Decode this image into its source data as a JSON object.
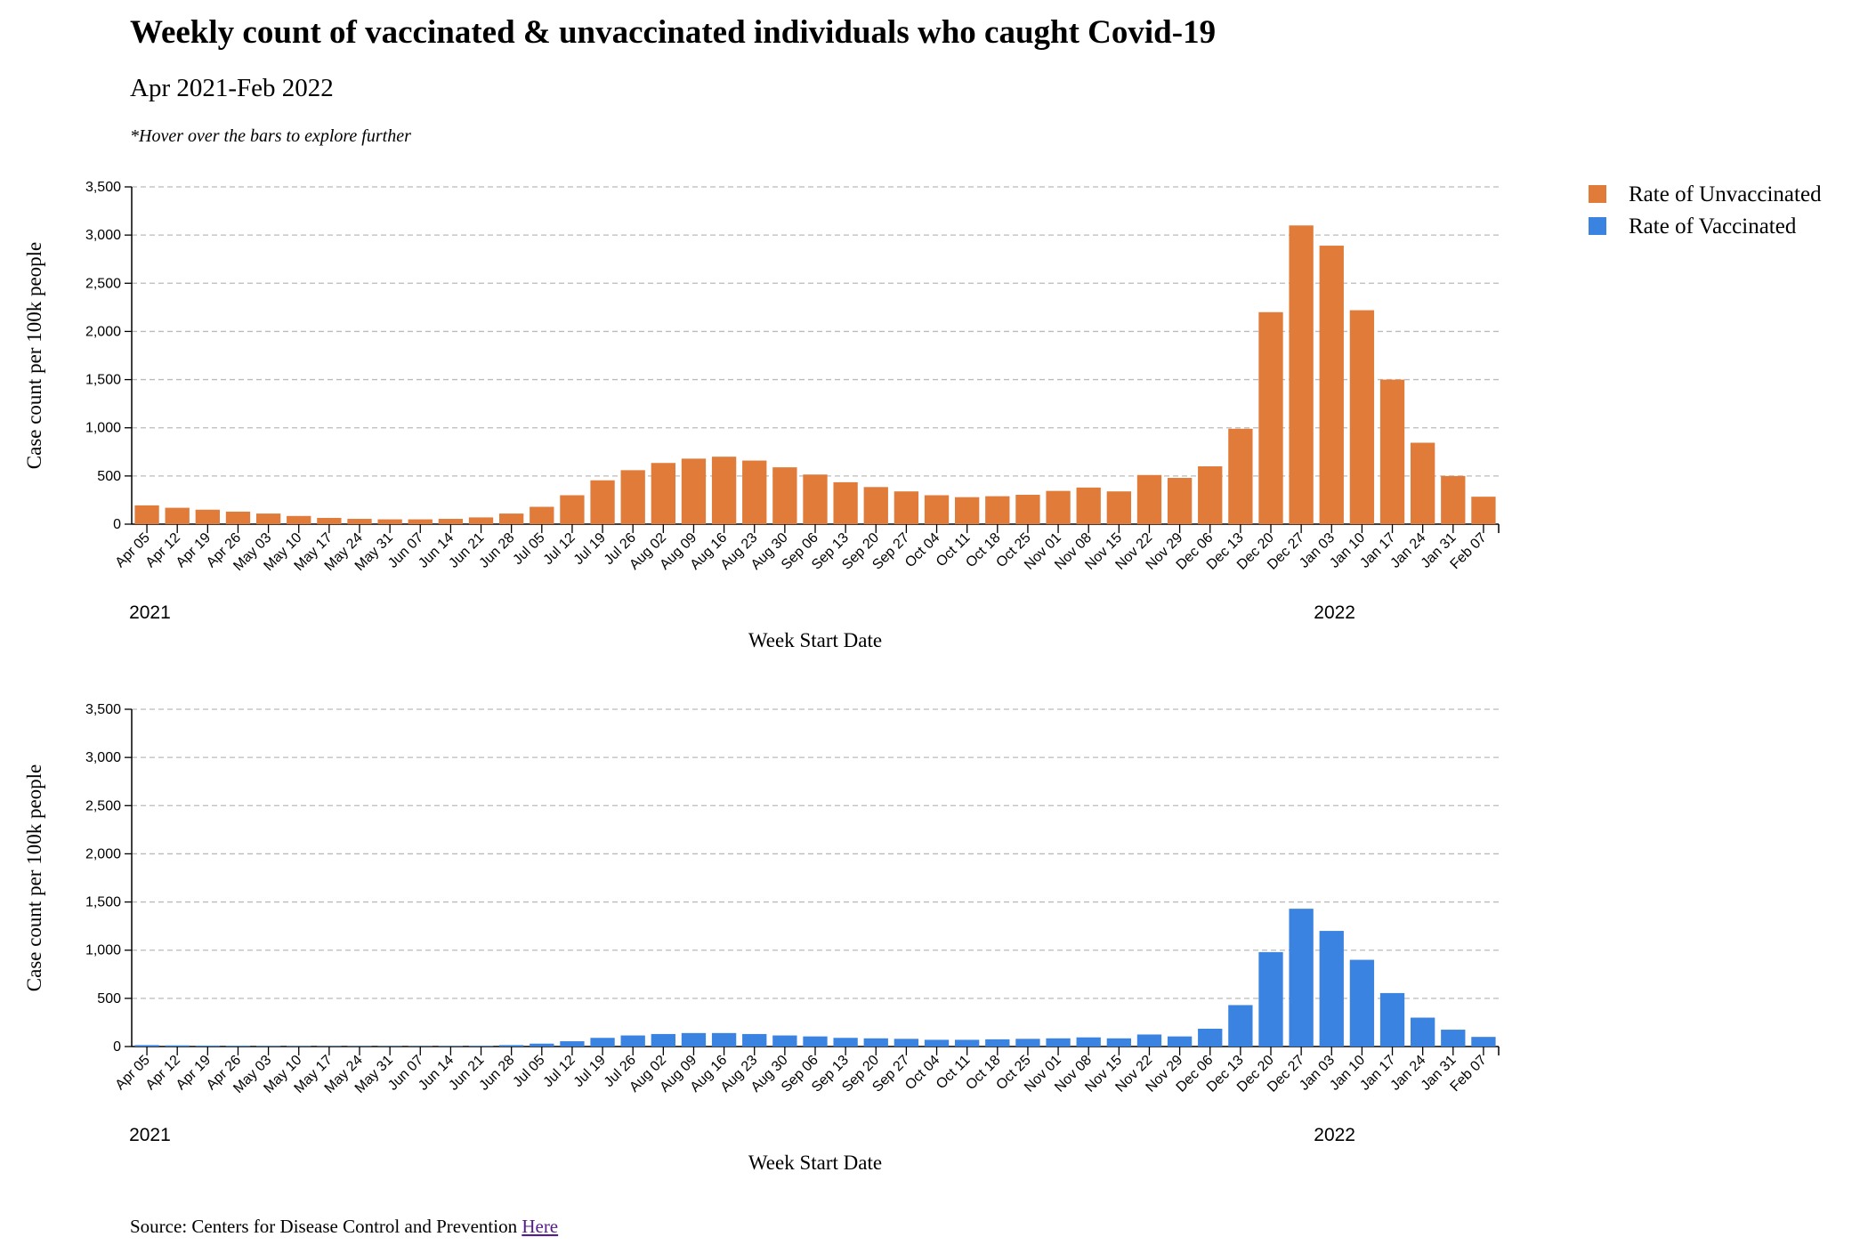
{
  "header": {
    "title": "Weekly count of vaccinated & unvaccinated individuals who caught Covid-19",
    "subtitle": "Apr 2021-Feb 2022",
    "note": "*Hover over the bars to explore further"
  },
  "legend_position": "top-right",
  "source": {
    "text": "Source: Centers for Disease Control and Prevention",
    "link": "Here"
  },
  "chart_data": [
    {
      "type": "bar",
      "ylabel": "Case count per 100k people",
      "xlabel": "Week Start Date",
      "categories": [
        "Apr 05",
        "Apr 12",
        "Apr 19",
        "Apr 26",
        "May 03",
        "May 10",
        "May 17",
        "May 24",
        "May 31",
        "Jun 07",
        "Jun 14",
        "Jun 21",
        "Jun 28",
        "Jul 05",
        "Jul 12",
        "Jul 19",
        "Jul 26",
        "Aug 02",
        "Aug 09",
        "Aug 16",
        "Aug 23",
        "Aug 30",
        "Sep 06",
        "Sep 13",
        "Sep 20",
        "Sep 27",
        "Oct 04",
        "Oct 11",
        "Oct 18",
        "Oct 25",
        "Nov 01",
        "Nov 08",
        "Nov 15",
        "Nov 22",
        "Nov 29",
        "Dec 06",
        "Dec 13",
        "Dec 20",
        "Dec 27",
        "Jan 03",
        "Jan 10",
        "Jan 17",
        "Jan 24",
        "Jan 31",
        "Feb 07"
      ],
      "year_markers": [
        {
          "text": "2021",
          "week": "Apr 05"
        },
        {
          "text": "2022",
          "week": "Jan 03"
        }
      ],
      "series": [
        {
          "name": "Rate of Unvaccinated",
          "color": "#e07b39",
          "values": [
            195,
            170,
            150,
            130,
            110,
            85,
            65,
            55,
            50,
            50,
            55,
            70,
            110,
            180,
            300,
            455,
            560,
            635,
            680,
            700,
            660,
            590,
            515,
            435,
            385,
            340,
            300,
            280,
            290,
            305,
            345,
            380,
            340,
            510,
            480,
            600,
            990,
            2200,
            3100,
            2890,
            2220,
            1500,
            845,
            500,
            285
          ]
        }
      ],
      "ylim": [
        0,
        3500
      ],
      "yticks": [
        0,
        500,
        {
          "value": 1000,
          "label": "1,000"
        },
        {
          "value": 1500,
          "label": "1,500"
        },
        {
          "value": 2000,
          "label": "2,000"
        },
        {
          "value": 2500,
          "label": "2,500"
        },
        {
          "value": 3000,
          "label": "3,000"
        },
        {
          "value": 3500,
          "label": "3,500"
        }
      ],
      "grid": true
    },
    {
      "type": "bar",
      "ylabel": "Case count per 100k people",
      "xlabel": "Week Start Date",
      "categories": [
        "Apr 05",
        "Apr 12",
        "Apr 19",
        "Apr 26",
        "May 03",
        "May 10",
        "May 17",
        "May 24",
        "May 31",
        "Jun 07",
        "Jun 14",
        "Jun 21",
        "Jun 28",
        "Jul 05",
        "Jul 12",
        "Jul 19",
        "Jul 26",
        "Aug 02",
        "Aug 09",
        "Aug 16",
        "Aug 23",
        "Aug 30",
        "Sep 06",
        "Sep 13",
        "Sep 20",
        "Sep 27",
        "Oct 04",
        "Oct 11",
        "Oct 18",
        "Oct 25",
        "Nov 01",
        "Nov 08",
        "Nov 15",
        "Nov 22",
        "Nov 29",
        "Dec 06",
        "Dec 13",
        "Dec 20",
        "Dec 27",
        "Jan 03",
        "Jan 10",
        "Jan 17",
        "Jan 24",
        "Jan 31",
        "Feb 07"
      ],
      "year_markers": [
        {
          "text": "2021",
          "week": "Apr 05"
        },
        {
          "text": "2022",
          "week": "Jan 03"
        }
      ],
      "series": [
        {
          "name": "Rate of Vaccinated",
          "color": "#3b83e0",
          "values": [
            15,
            12,
            10,
            8,
            6,
            5,
            4,
            4,
            4,
            4,
            5,
            7,
            15,
            30,
            55,
            90,
            115,
            130,
            140,
            140,
            130,
            115,
            105,
            90,
            85,
            80,
            70,
            70,
            75,
            80,
            85,
            95,
            85,
            125,
            105,
            185,
            430,
            980,
            1430,
            1200,
            900,
            555,
            300,
            175,
            100
          ]
        }
      ],
      "ylim": [
        0,
        3500
      ],
      "yticks": [
        0,
        500,
        {
          "value": 1000,
          "label": "1,000"
        },
        {
          "value": 1500,
          "label": "1,500"
        },
        {
          "value": 2000,
          "label": "2,000"
        },
        {
          "value": 2500,
          "label": "2,500"
        },
        {
          "value": 3000,
          "label": "3,000"
        },
        {
          "value": 3500,
          "label": "3,500"
        }
      ],
      "grid": true
    }
  ]
}
